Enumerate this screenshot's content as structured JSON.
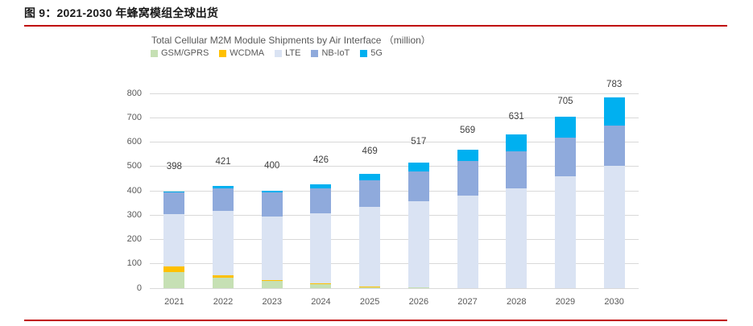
{
  "page": {
    "figure_title": "图 9：2021-2030 年蜂窝模组全球出货",
    "accent_color": "#c00000",
    "background_color": "#ffffff"
  },
  "chart_data": {
    "type": "bar",
    "stacked": true,
    "title": "Total Cellular M2M Module Shipments by Air Interface （million）",
    "categories": [
      "2021",
      "2022",
      "2023",
      "2024",
      "2025",
      "2026",
      "2027",
      "2028",
      "2029",
      "2030"
    ],
    "series": [
      {
        "name": "GSM/GPRS",
        "color": "#c6e0b4",
        "values": [
          65,
          42,
          30,
          16,
          6,
          2,
          0,
          0,
          0,
          0
        ]
      },
      {
        "name": "WCDMA",
        "color": "#ffc000",
        "values": [
          23,
          10,
          4,
          4,
          2,
          0,
          0,
          0,
          0,
          0
        ]
      },
      {
        "name": "LTE",
        "color": "#dae3f3",
        "values": [
          217,
          265,
          260,
          286,
          327,
          354,
          381,
          411,
          458,
          501
        ]
      },
      {
        "name": "NB-IoT",
        "color": "#8faadc",
        "values": [
          90,
          93,
          98,
          104,
          107,
          124,
          141,
          151,
          161,
          166
        ]
      },
      {
        "name": "5G",
        "color": "#00b0f0",
        "values": [
          3,
          11,
          8,
          16,
          27,
          37,
          47,
          69,
          86,
          116
        ]
      }
    ],
    "totals": [
      398,
      421,
      400,
      426,
      469,
      517,
      569,
      631,
      705,
      783
    ],
    "total_labels_shown": true,
    "xlabel": "",
    "ylabel": "",
    "ylim": [
      0,
      800
    ],
    "ytick_interval": 100,
    "grid": "horizontal",
    "legend_position": "top-left",
    "gridline_color": "#d9d9d9",
    "axis_text_color": "#595959",
    "data_label_color": "#3f3f3f"
  }
}
